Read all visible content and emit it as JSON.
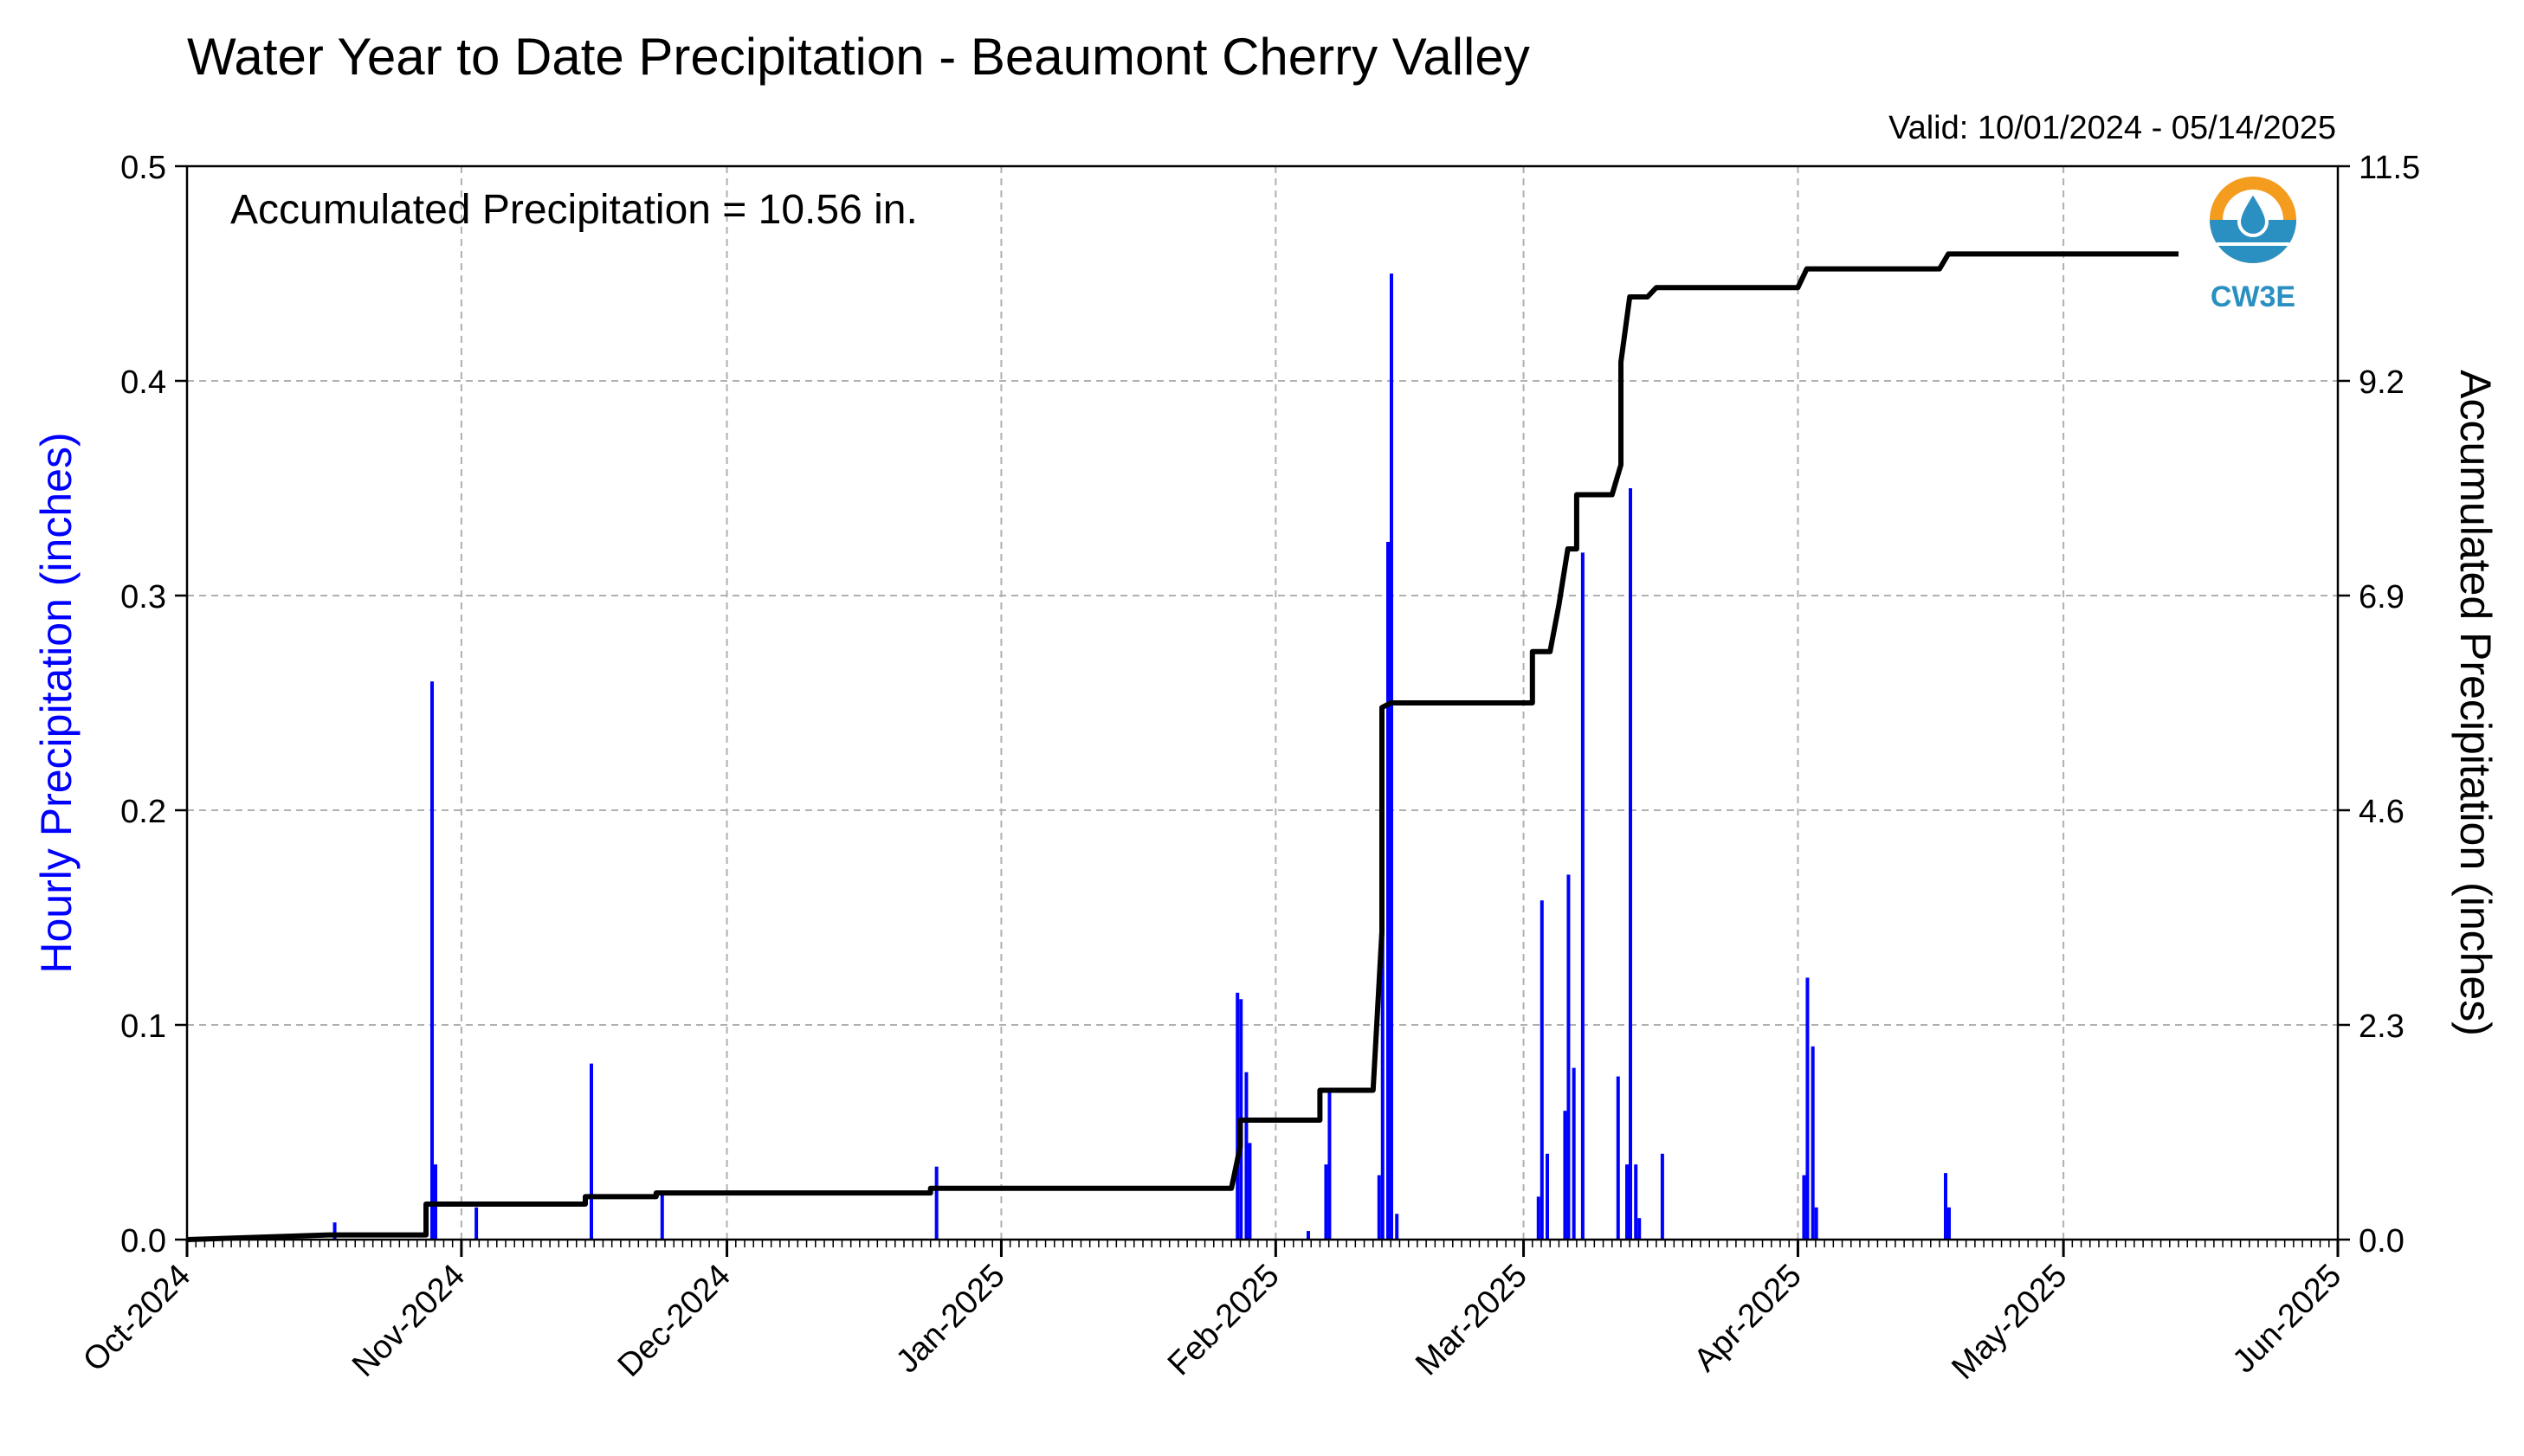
{
  "chart_data": {
    "type": "bar+line",
    "title": "Water Year to Date Precipitation - Beaumont Cherry Valley",
    "valid_text": "Valid: 10/01/2024 - 05/14/2025",
    "annotation": "Accumulated Precipitation = 10.56 in.",
    "logo_text": "CW3E",
    "ylabel_left": "Hourly Precipitation (inches)",
    "ylabel_right": "Accumulated Precipitation (inches)",
    "ylim_left": [
      0,
      0.5
    ],
    "ylim_right": [
      0,
      11.5
    ],
    "yticks_left": [
      "0.0",
      "0.1",
      "0.2",
      "0.3",
      "0.4",
      "0.5"
    ],
    "yticks_right": [
      "0.0",
      "2.3",
      "4.6",
      "6.9",
      "9.2",
      "11.5"
    ],
    "xlim": [
      "2024-10-01",
      "2025-06-01"
    ],
    "xticks": [
      "Oct-2024",
      "Nov-2024",
      "Dec-2024",
      "Jan-2025",
      "Feb-2025",
      "Mar-2025",
      "Apr-2025",
      "May-2025",
      "Jun-2025"
    ],
    "grid": true,
    "colors": {
      "hourly": "#0000ff",
      "accumulated": "#000000",
      "grid": "#b0b0b0",
      "logo_orange": "#f39c1e",
      "logo_blue": "#2a8fc1",
      "ylabel_left": "#0000ff"
    },
    "hourly_series": {
      "name": "Hourly Precipitation",
      "x": [
        "2024-10-17",
        "2024-10-28",
        "2024-10-28",
        "2024-11-02",
        "2024-11-15",
        "2024-11-23",
        "2024-12-24",
        "2025-01-27",
        "2025-01-27",
        "2025-01-28",
        "2025-01-28",
        "2025-02-04",
        "2025-02-06",
        "2025-02-06",
        "2025-02-12",
        "2025-02-12",
        "2025-02-13",
        "2025-02-13",
        "2025-02-13",
        "2025-02-13",
        "2025-02-14",
        "2025-03-02",
        "2025-03-02",
        "2025-03-03",
        "2025-03-05",
        "2025-03-05",
        "2025-03-06",
        "2025-03-07",
        "2025-03-11",
        "2025-03-12",
        "2025-03-12",
        "2025-03-12",
        "2025-03-12",
        "2025-03-13",
        "2025-03-13",
        "2025-03-16",
        "2025-04-01",
        "2025-04-01",
        "2025-04-02",
        "2025-04-02",
        "2025-04-17",
        "2025-04-17"
      ],
      "y": [
        0.008,
        0.26,
        0.035,
        0.015,
        0.082,
        0.022,
        0.034,
        0.115,
        0.112,
        0.078,
        0.045,
        0.004,
        0.035,
        0.07,
        0.03,
        0.197,
        0.325,
        0.45,
        0.3,
        0.16,
        0.012,
        0.02,
        0.158,
        0.04,
        0.06,
        0.17,
        0.08,
        0.32,
        0.076,
        0.035,
        0.35,
        0.18,
        0.05,
        0.035,
        0.01,
        0.04,
        0.03,
        0.122,
        0.09,
        0.015,
        0.031,
        0.015
      ]
    },
    "accumulated_series": {
      "name": "Accumulated Precipitation",
      "x": [
        "2024-10-01",
        "2024-10-17",
        "2024-10-28",
        "2024-10-28",
        "2024-11-15",
        "2024-11-15",
        "2024-11-23",
        "2024-11-23",
        "2024-12-24",
        "2024-12-24",
        "2025-01-27",
        "2025-01-28",
        "2025-01-28",
        "2025-02-06",
        "2025-02-06",
        "2025-02-12",
        "2025-02-13",
        "2025-02-13",
        "2025-02-14",
        "2025-03-02",
        "2025-03-02",
        "2025-03-04",
        "2025-03-05",
        "2025-03-06",
        "2025-03-07",
        "2025-03-07",
        "2025-03-11",
        "2025-03-12",
        "2025-03-12",
        "2025-03-13",
        "2025-03-15",
        "2025-03-16",
        "2025-04-01",
        "2025-04-02",
        "2025-04-17",
        "2025-04-18",
        "2025-05-14"
      ],
      "y": [
        0.0,
        0.05,
        0.05,
        0.38,
        0.38,
        0.46,
        0.46,
        0.5,
        0.5,
        0.55,
        0.55,
        1.0,
        1.28,
        1.28,
        1.6,
        1.6,
        3.3,
        5.7,
        5.75,
        5.75,
        6.3,
        6.3,
        6.8,
        7.4,
        7.4,
        7.98,
        7.98,
        8.3,
        9.4,
        10.1,
        10.1,
        10.2,
        10.2,
        10.4,
        10.4,
        10.56,
        10.56
      ]
    }
  }
}
